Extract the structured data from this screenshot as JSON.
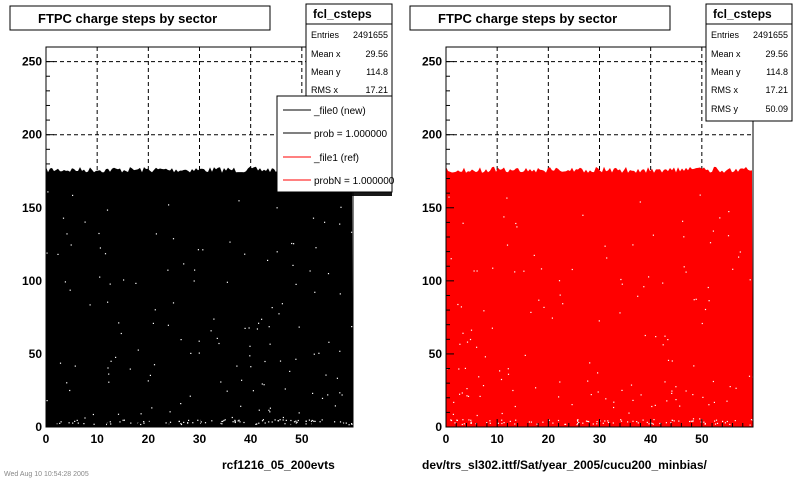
{
  "pads": [
    {
      "title": "FTPC charge steps by sector",
      "stats": {
        "name": "fcl_csteps",
        "rows": [
          {
            "label": "Entries",
            "value": "2491655"
          },
          {
            "label": "Mean x",
            "value": "29.56"
          },
          {
            "label": "Mean y",
            "value": "114.8"
          },
          {
            "label": "RMS x",
            "value": "17.21"
          }
        ]
      },
      "legend": [
        {
          "label": "_file0 (new)",
          "color": "#000000"
        },
        {
          "label": "prob = 1.000000",
          "color": "#000000"
        },
        {
          "label": "_file1 (ref)",
          "color": "#ff0000"
        },
        {
          "label": "probN = 1.000000",
          "color": "#ff0000"
        }
      ],
      "footer": "rcf1216_05_200evts",
      "corner_text": "Wed Aug 10 10:54:28 2005"
    },
    {
      "title": "FTPC charge steps by sector",
      "stats": {
        "name": "fcl_csteps",
        "rows": [
          {
            "label": "Entries",
            "value": "2491655"
          },
          {
            "label": "Mean x",
            "value": "29.56"
          },
          {
            "label": "Mean y",
            "value": "114.8"
          },
          {
            "label": "RMS x",
            "value": "17.21"
          },
          {
            "label": "RMS y",
            "value": "50.09"
          }
        ]
      },
      "footer": "dev/trs_sl302.ittf/Sat/year_2005/cucu200_minbias/"
    }
  ],
  "chart_data": [
    {
      "type": "heatmap",
      "title": "FTPC charge steps by sector",
      "xlim": [
        0,
        60
      ],
      "ylim": [
        0,
        260
      ],
      "x_ticks": [
        0,
        10,
        20,
        30,
        40,
        50
      ],
      "y_ticks": [
        0,
        50,
        100,
        150,
        200,
        250
      ],
      "grid": true,
      "fill_top": 176,
      "fill_color": "#000000",
      "legend_position": "top-right"
    },
    {
      "type": "heatmap",
      "title": "FTPC charge steps by sector",
      "xlim": [
        0,
        60
      ],
      "ylim": [
        0,
        260
      ],
      "x_ticks": [
        0,
        10,
        20,
        30,
        40,
        50
      ],
      "y_ticks": [
        0,
        50,
        100,
        150,
        200,
        250
      ],
      "grid": true,
      "fill_top": 176,
      "fill_color": "#ff0000"
    }
  ]
}
